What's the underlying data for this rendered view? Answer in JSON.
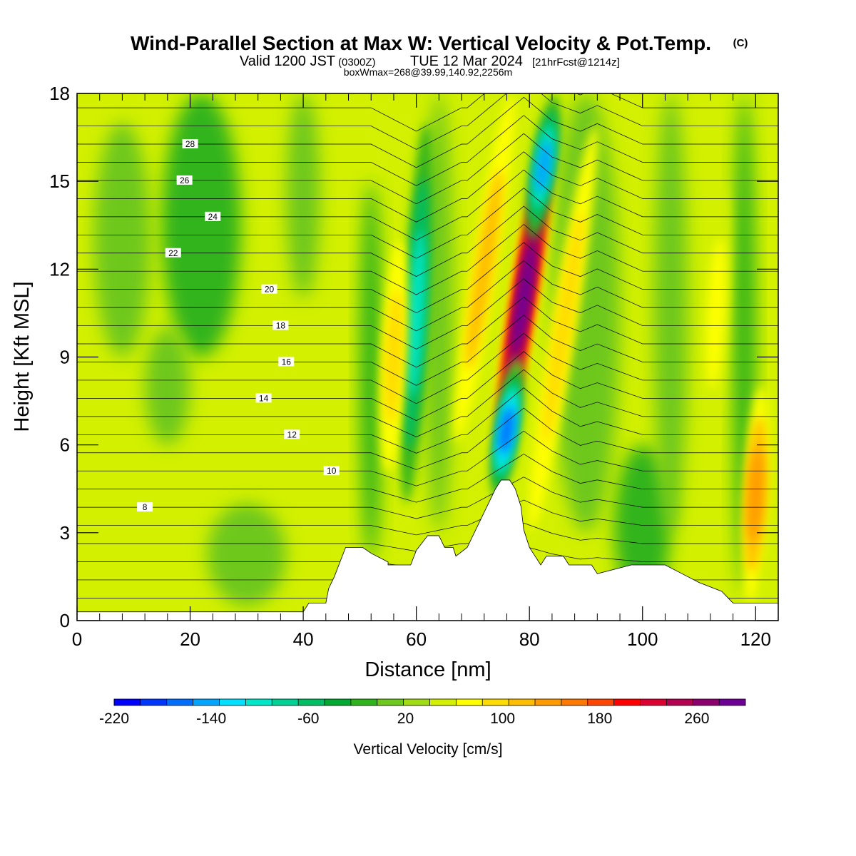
{
  "chart_data": {
    "type": "heatmap",
    "title": "Wind-Parallel Section at Max W: Vertical Velocity & Pot.Temp.",
    "title_mark": "(C)",
    "subtitle_parts": {
      "valid": "Valid 1200 JST",
      "utc": "(0300Z)",
      "date": "TUE 12 Mar 2024",
      "forecast": "[21hrFcst@1214z]"
    },
    "note": "boxWmax=268@39.99,140.92,2256m",
    "xlabel": "Distance [nm]",
    "ylabel": "Height [Kft MSL]",
    "xlim": [
      0,
      124
    ],
    "ylim": [
      0,
      18
    ],
    "x_ticks": [
      "0",
      "20",
      "40",
      "60",
      "80",
      "100",
      "120"
    ],
    "y_ticks": [
      "0",
      "3",
      "6",
      "9",
      "12",
      "15",
      "18"
    ],
    "x_tick_values": [
      0,
      20,
      40,
      60,
      80,
      100,
      120
    ],
    "y_tick_values": [
      0,
      3,
      6,
      9,
      12,
      15,
      18
    ],
    "colorbar": {
      "title": "Vertical Velocity [cm/s]",
      "min": -220,
      "max": 300,
      "step": 20,
      "tick_labels": [
        "-220",
        "-140",
        "-60",
        "20",
        "100",
        "180",
        "260"
      ],
      "tick_values": [
        -220,
        -140,
        -60,
        20,
        100,
        180,
        260
      ],
      "colors": [
        "#0000ff",
        "#0037ff",
        "#006eff",
        "#00a5ff",
        "#00e1ff",
        "#00e6c8",
        "#00d296",
        "#00be64",
        "#00aa32",
        "#30b41e",
        "#6ec81e",
        "#9fdc14",
        "#d2f000",
        "#ffff00",
        "#ffdc00",
        "#ffbe00",
        "#ff9b00",
        "#ff7800",
        "#ff4600",
        "#ff0000",
        "#dc0032",
        "#b40050",
        "#8c006e",
        "#6e0096"
      ]
    },
    "terrain_kft": [
      [
        0,
        0.3
      ],
      [
        40,
        0.3
      ],
      [
        41,
        0.6
      ],
      [
        44,
        0.6
      ],
      [
        44.5,
        1.1
      ],
      [
        45.5,
        1.5
      ],
      [
        46.5,
        2
      ],
      [
        47.5,
        2.5
      ],
      [
        50.5,
        2.5
      ],
      [
        52,
        2.3
      ],
      [
        55,
        2
      ],
      [
        55,
        1.9
      ],
      [
        59,
        1.9
      ],
      [
        60,
        2.4
      ],
      [
        62,
        2.9
      ],
      [
        64,
        2.9
      ],
      [
        65,
        2.5
      ],
      [
        66.5,
        2.5
      ],
      [
        67,
        2.2
      ],
      [
        69,
        2.5
      ],
      [
        70,
        2.9
      ],
      [
        71,
        3.3
      ],
      [
        72,
        3.7
      ],
      [
        73,
        4.1
      ],
      [
        74,
        4.5
      ],
      [
        75,
        4.8
      ],
      [
        76.5,
        4.8
      ],
      [
        77.5,
        4.5
      ],
      [
        78.5,
        3.9
      ],
      [
        79,
        3.1
      ],
      [
        80,
        2.5
      ],
      [
        81,
        2.2
      ],
      [
        82,
        1.9
      ],
      [
        83,
        2.2
      ],
      [
        86,
        2.2
      ],
      [
        87,
        1.9
      ],
      [
        91,
        1.9
      ],
      [
        92,
        1.6
      ],
      [
        98,
        1.9
      ],
      [
        104,
        1.9
      ],
      [
        107,
        1.6
      ],
      [
        110,
        1.3
      ],
      [
        114,
        1
      ],
      [
        116,
        0.6
      ],
      [
        124,
        0.6
      ]
    ],
    "theta_contours_c": [
      2,
      3,
      4,
      5,
      6,
      7,
      8,
      9,
      10,
      11,
      12,
      13,
      14,
      15,
      16,
      17,
      18,
      19,
      20,
      21,
      22,
      23,
      24,
      25,
      26,
      27,
      28,
      29,
      30
    ],
    "theta_label_values": [
      "8",
      "10",
      "12",
      "14",
      "16",
      "18",
      "20",
      "22",
      "24",
      "26",
      "28"
    ],
    "w_features": [
      {
        "x": 79,
        "z_top": 18,
        "z_bottom": 4.0,
        "peak_cm_s": 268,
        "peak_height_kft": 11,
        "sign": "up"
      },
      {
        "x": 76,
        "z_top": 9,
        "z_bottom": 4.0,
        "peak_cm_s": -180,
        "sign": "down"
      },
      {
        "x": 82.5,
        "z_top": 18,
        "z_bottom": 13,
        "peak_cm_s": -160,
        "sign": "down"
      },
      {
        "x": 60,
        "z_top": 17,
        "z_bottom": 4,
        "peak_cm_s": -120,
        "sign": "down"
      },
      {
        "x": 56,
        "z_top": 13,
        "z_bottom": 5,
        "peak_cm_s": 60,
        "sign": "up"
      },
      {
        "x": 72,
        "z_top": 18,
        "z_bottom": 6,
        "peak_cm_s": 90,
        "sign": "up"
      },
      {
        "x": 86,
        "z_top": 17,
        "z_bottom": 3,
        "peak_cm_s": 60,
        "sign": "up"
      },
      {
        "x": 120,
        "z_top": 8,
        "z_bottom": 0.6,
        "peak_cm_s": 110,
        "sign": "up"
      },
      {
        "x": 113,
        "z_top": 15,
        "z_bottom": 6,
        "peak_cm_s": 50,
        "sign": "up"
      }
    ]
  }
}
